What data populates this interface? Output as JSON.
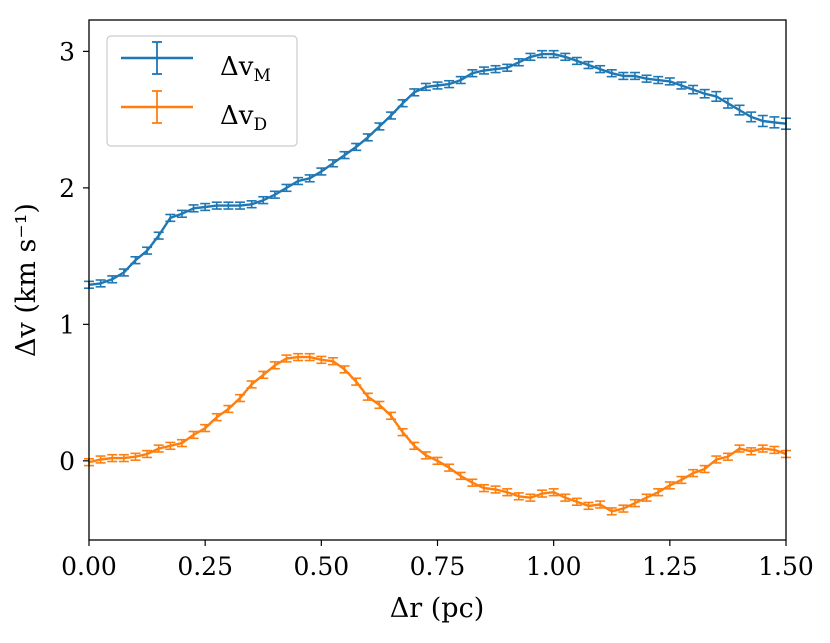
{
  "chart_data": {
    "type": "line",
    "title": "",
    "xlabel": "Δr (pc)",
    "ylabel": "Δv (km s⁻¹)",
    "xlim": [
      0.0,
      1.5
    ],
    "ylim": [
      -0.58,
      3.23
    ],
    "xticks": [
      0.0,
      0.25,
      0.5,
      0.75,
      1.0,
      1.25,
      1.5
    ],
    "xtick_labels": [
      "0.00",
      "0.25",
      "0.50",
      "0.75",
      "1.00",
      "1.25",
      "1.50"
    ],
    "yticks": [
      0,
      1,
      2,
      3
    ],
    "ytick_labels": [
      "0",
      "1",
      "2",
      "3"
    ],
    "grid": false,
    "legend_position": "top-left",
    "series": [
      {
        "name": "Δv_M",
        "legend_main": "Δv",
        "legend_sub": "M",
        "color": "#1f77b4",
        "x": [
          0.0,
          0.025,
          0.05,
          0.075,
          0.1,
          0.125,
          0.15,
          0.175,
          0.2,
          0.225,
          0.25,
          0.275,
          0.3,
          0.325,
          0.35,
          0.375,
          0.4,
          0.425,
          0.45,
          0.475,
          0.5,
          0.525,
          0.55,
          0.575,
          0.6,
          0.625,
          0.65,
          0.675,
          0.7,
          0.725,
          0.75,
          0.775,
          0.8,
          0.825,
          0.85,
          0.875,
          0.9,
          0.925,
          0.95,
          0.975,
          1.0,
          1.025,
          1.05,
          1.075,
          1.1,
          1.125,
          1.15,
          1.175,
          1.2,
          1.225,
          1.25,
          1.275,
          1.3,
          1.325,
          1.35,
          1.375,
          1.4,
          1.425,
          1.45,
          1.475,
          1.5
        ],
        "y": [
          1.29,
          1.3,
          1.33,
          1.38,
          1.47,
          1.54,
          1.65,
          1.78,
          1.81,
          1.85,
          1.86,
          1.87,
          1.87,
          1.87,
          1.88,
          1.91,
          1.95,
          2.0,
          2.05,
          2.07,
          2.12,
          2.18,
          2.24,
          2.3,
          2.37,
          2.45,
          2.53,
          2.62,
          2.7,
          2.74,
          2.75,
          2.76,
          2.79,
          2.84,
          2.86,
          2.87,
          2.88,
          2.92,
          2.96,
          2.98,
          2.98,
          2.96,
          2.93,
          2.9,
          2.87,
          2.84,
          2.82,
          2.82,
          2.8,
          2.79,
          2.78,
          2.75,
          2.72,
          2.69,
          2.67,
          2.62,
          2.57,
          2.52,
          2.49,
          2.48,
          2.47
        ],
        "yerr": [
          0.025,
          0.025,
          0.025,
          0.025,
          0.025,
          0.025,
          0.025,
          0.025,
          0.025,
          0.025,
          0.025,
          0.025,
          0.025,
          0.025,
          0.025,
          0.025,
          0.025,
          0.025,
          0.025,
          0.025,
          0.025,
          0.025,
          0.025,
          0.025,
          0.025,
          0.025,
          0.025,
          0.025,
          0.025,
          0.025,
          0.025,
          0.025,
          0.025,
          0.025,
          0.025,
          0.025,
          0.025,
          0.025,
          0.025,
          0.025,
          0.025,
          0.025,
          0.025,
          0.025,
          0.025,
          0.025,
          0.025,
          0.025,
          0.025,
          0.025,
          0.025,
          0.025,
          0.03,
          0.03,
          0.035,
          0.035,
          0.035,
          0.035,
          0.04,
          0.04,
          0.04
        ]
      },
      {
        "name": "Δv_D",
        "legend_main": "Δv",
        "legend_sub": "D",
        "color": "#ff7f0e",
        "x": [
          0.0,
          0.025,
          0.05,
          0.075,
          0.1,
          0.125,
          0.15,
          0.175,
          0.2,
          0.225,
          0.25,
          0.275,
          0.3,
          0.325,
          0.35,
          0.375,
          0.4,
          0.425,
          0.45,
          0.475,
          0.5,
          0.525,
          0.55,
          0.575,
          0.6,
          0.625,
          0.65,
          0.675,
          0.7,
          0.725,
          0.75,
          0.775,
          0.8,
          0.825,
          0.85,
          0.875,
          0.9,
          0.925,
          0.95,
          0.975,
          1.0,
          1.025,
          1.05,
          1.075,
          1.1,
          1.125,
          1.15,
          1.175,
          1.2,
          1.225,
          1.25,
          1.275,
          1.3,
          1.325,
          1.35,
          1.375,
          1.4,
          1.425,
          1.45,
          1.475,
          1.5
        ],
        "y": [
          -0.01,
          0.01,
          0.02,
          0.02,
          0.03,
          0.05,
          0.09,
          0.11,
          0.13,
          0.19,
          0.24,
          0.32,
          0.38,
          0.46,
          0.56,
          0.63,
          0.7,
          0.75,
          0.76,
          0.76,
          0.74,
          0.73,
          0.67,
          0.58,
          0.47,
          0.41,
          0.33,
          0.21,
          0.11,
          0.04,
          0.0,
          -0.05,
          -0.11,
          -0.16,
          -0.2,
          -0.21,
          -0.23,
          -0.26,
          -0.27,
          -0.24,
          -0.23,
          -0.27,
          -0.3,
          -0.33,
          -0.32,
          -0.37,
          -0.35,
          -0.31,
          -0.27,
          -0.23,
          -0.18,
          -0.14,
          -0.09,
          -0.06,
          0.01,
          0.03,
          0.09,
          0.07,
          0.09,
          0.08,
          0.05
        ]
      }
    ]
  }
}
